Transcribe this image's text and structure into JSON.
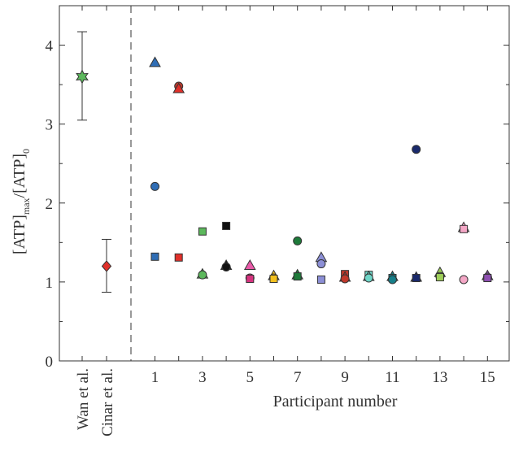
{
  "chart_data": {
    "type": "scatter",
    "xlabel": "Participant number",
    "ylabel_main": "[ATP]",
    "ylabel_sub_max": "max",
    "ylabel_sep": "/",
    "ylabel_sub_zero": "0",
    "ylim": [
      0,
      4.5
    ],
    "yticks": [
      0,
      1,
      2,
      3,
      4
    ],
    "xticks": [
      1,
      3,
      5,
      7,
      9,
      11,
      13,
      15
    ],
    "grid": false,
    "legend": "none",
    "references": [
      {
        "label": "Wan et al.",
        "value": 3.6,
        "err_low": 3.05,
        "err_high": 4.17,
        "marker": "star",
        "color": "#5cb85c"
      },
      {
        "label": "Cinar et al.",
        "value": 1.2,
        "err_low": 0.87,
        "err_high": 1.54,
        "marker": "diamond",
        "color": "#e0302a"
      }
    ],
    "points": [
      {
        "x": 1,
        "y": 3.78,
        "marker": "triangle",
        "color": "#2f6db5"
      },
      {
        "x": 1,
        "y": 2.21,
        "marker": "circle",
        "color": "#2f6db5"
      },
      {
        "x": 1,
        "y": 1.32,
        "marker": "square",
        "color": "#2f6db5"
      },
      {
        "x": 2,
        "y": 3.48,
        "marker": "circle",
        "color": "#c0392b"
      },
      {
        "x": 2,
        "y": 3.45,
        "marker": "triangle",
        "color": "#e0302a"
      },
      {
        "x": 2,
        "y": 1.31,
        "marker": "square",
        "color": "#e0302a"
      },
      {
        "x": 3,
        "y": 1.64,
        "marker": "square",
        "color": "#5cb85c"
      },
      {
        "x": 3,
        "y": 1.1,
        "marker": "triangle",
        "color": "#5cb85c"
      },
      {
        "x": 3,
        "y": 1.09,
        "marker": "circle",
        "color": "#5cb85c"
      },
      {
        "x": 4,
        "y": 1.71,
        "marker": "square",
        "color": "#111111"
      },
      {
        "x": 4,
        "y": 1.21,
        "marker": "triangle",
        "color": "#111111"
      },
      {
        "x": 4,
        "y": 1.19,
        "marker": "circle",
        "color": "#111111"
      },
      {
        "x": 5,
        "y": 1.21,
        "marker": "triangle",
        "color": "#e85aa8"
      },
      {
        "x": 5,
        "y": 1.05,
        "marker": "circle",
        "color": "#d6337f"
      },
      {
        "x": 5,
        "y": 1.04,
        "marker": "square",
        "color": "#d6337f"
      },
      {
        "x": 6,
        "y": 1.08,
        "marker": "triangle",
        "color": "#f2c01e"
      },
      {
        "x": 6,
        "y": 1.05,
        "marker": "circle",
        "color": "#f2c01e"
      },
      {
        "x": 6,
        "y": 1.04,
        "marker": "square",
        "color": "#f2c01e"
      },
      {
        "x": 7,
        "y": 1.52,
        "marker": "circle",
        "color": "#1e7a3a"
      },
      {
        "x": 7,
        "y": 1.09,
        "marker": "triangle",
        "color": "#1e7a3a"
      },
      {
        "x": 7,
        "y": 1.07,
        "marker": "square",
        "color": "#1e7a3a"
      },
      {
        "x": 8,
        "y": 1.31,
        "marker": "triangle",
        "color": "#8c8fd6"
      },
      {
        "x": 8,
        "y": 1.23,
        "marker": "circle",
        "color": "#8c8fd6"
      },
      {
        "x": 8,
        "y": 1.03,
        "marker": "square",
        "color": "#8c8fd6"
      },
      {
        "x": 9,
        "y": 1.1,
        "marker": "square",
        "color": "#c0392b"
      },
      {
        "x": 9,
        "y": 1.06,
        "marker": "triangle",
        "color": "#c0392b"
      },
      {
        "x": 9,
        "y": 1.04,
        "marker": "circle",
        "color": "#c0392b"
      },
      {
        "x": 10,
        "y": 1.09,
        "marker": "square",
        "color": "#6fd6c8"
      },
      {
        "x": 10,
        "y": 1.07,
        "marker": "triangle",
        "color": "#6fd6c8"
      },
      {
        "x": 10,
        "y": 1.05,
        "marker": "circle",
        "color": "#6fd6c8"
      },
      {
        "x": 11,
        "y": 1.07,
        "marker": "triangle",
        "color": "#167f8a"
      },
      {
        "x": 11,
        "y": 1.05,
        "marker": "square",
        "color": "#167f8a"
      },
      {
        "x": 11,
        "y": 1.03,
        "marker": "circle",
        "color": "#167f8a"
      },
      {
        "x": 12,
        "y": 2.68,
        "marker": "circle",
        "color": "#1a2a6c"
      },
      {
        "x": 12,
        "y": 1.06,
        "marker": "triangle",
        "color": "#1a2a6c"
      },
      {
        "x": 12,
        "y": 1.05,
        "marker": "square",
        "color": "#1a2a6c"
      },
      {
        "x": 13,
        "y": 1.12,
        "marker": "triangle",
        "color": "#9fcf5a"
      },
      {
        "x": 13,
        "y": 1.07,
        "marker": "circle",
        "color": "#9fcf5a"
      },
      {
        "x": 13,
        "y": 1.06,
        "marker": "square",
        "color": "#9fcf5a"
      },
      {
        "x": 14,
        "y": 1.69,
        "marker": "triangle",
        "color": "#f4a7c6"
      },
      {
        "x": 14,
        "y": 1.67,
        "marker": "square",
        "color": "#f4a7c6"
      },
      {
        "x": 14,
        "y": 1.03,
        "marker": "circle",
        "color": "#f4a7c6"
      },
      {
        "x": 15,
        "y": 1.08,
        "marker": "triangle",
        "color": "#8e4fb0"
      },
      {
        "x": 15,
        "y": 1.06,
        "marker": "circle",
        "color": "#8e4fb0"
      },
      {
        "x": 15,
        "y": 1.05,
        "marker": "square",
        "color": "#8e4fb0"
      }
    ]
  }
}
